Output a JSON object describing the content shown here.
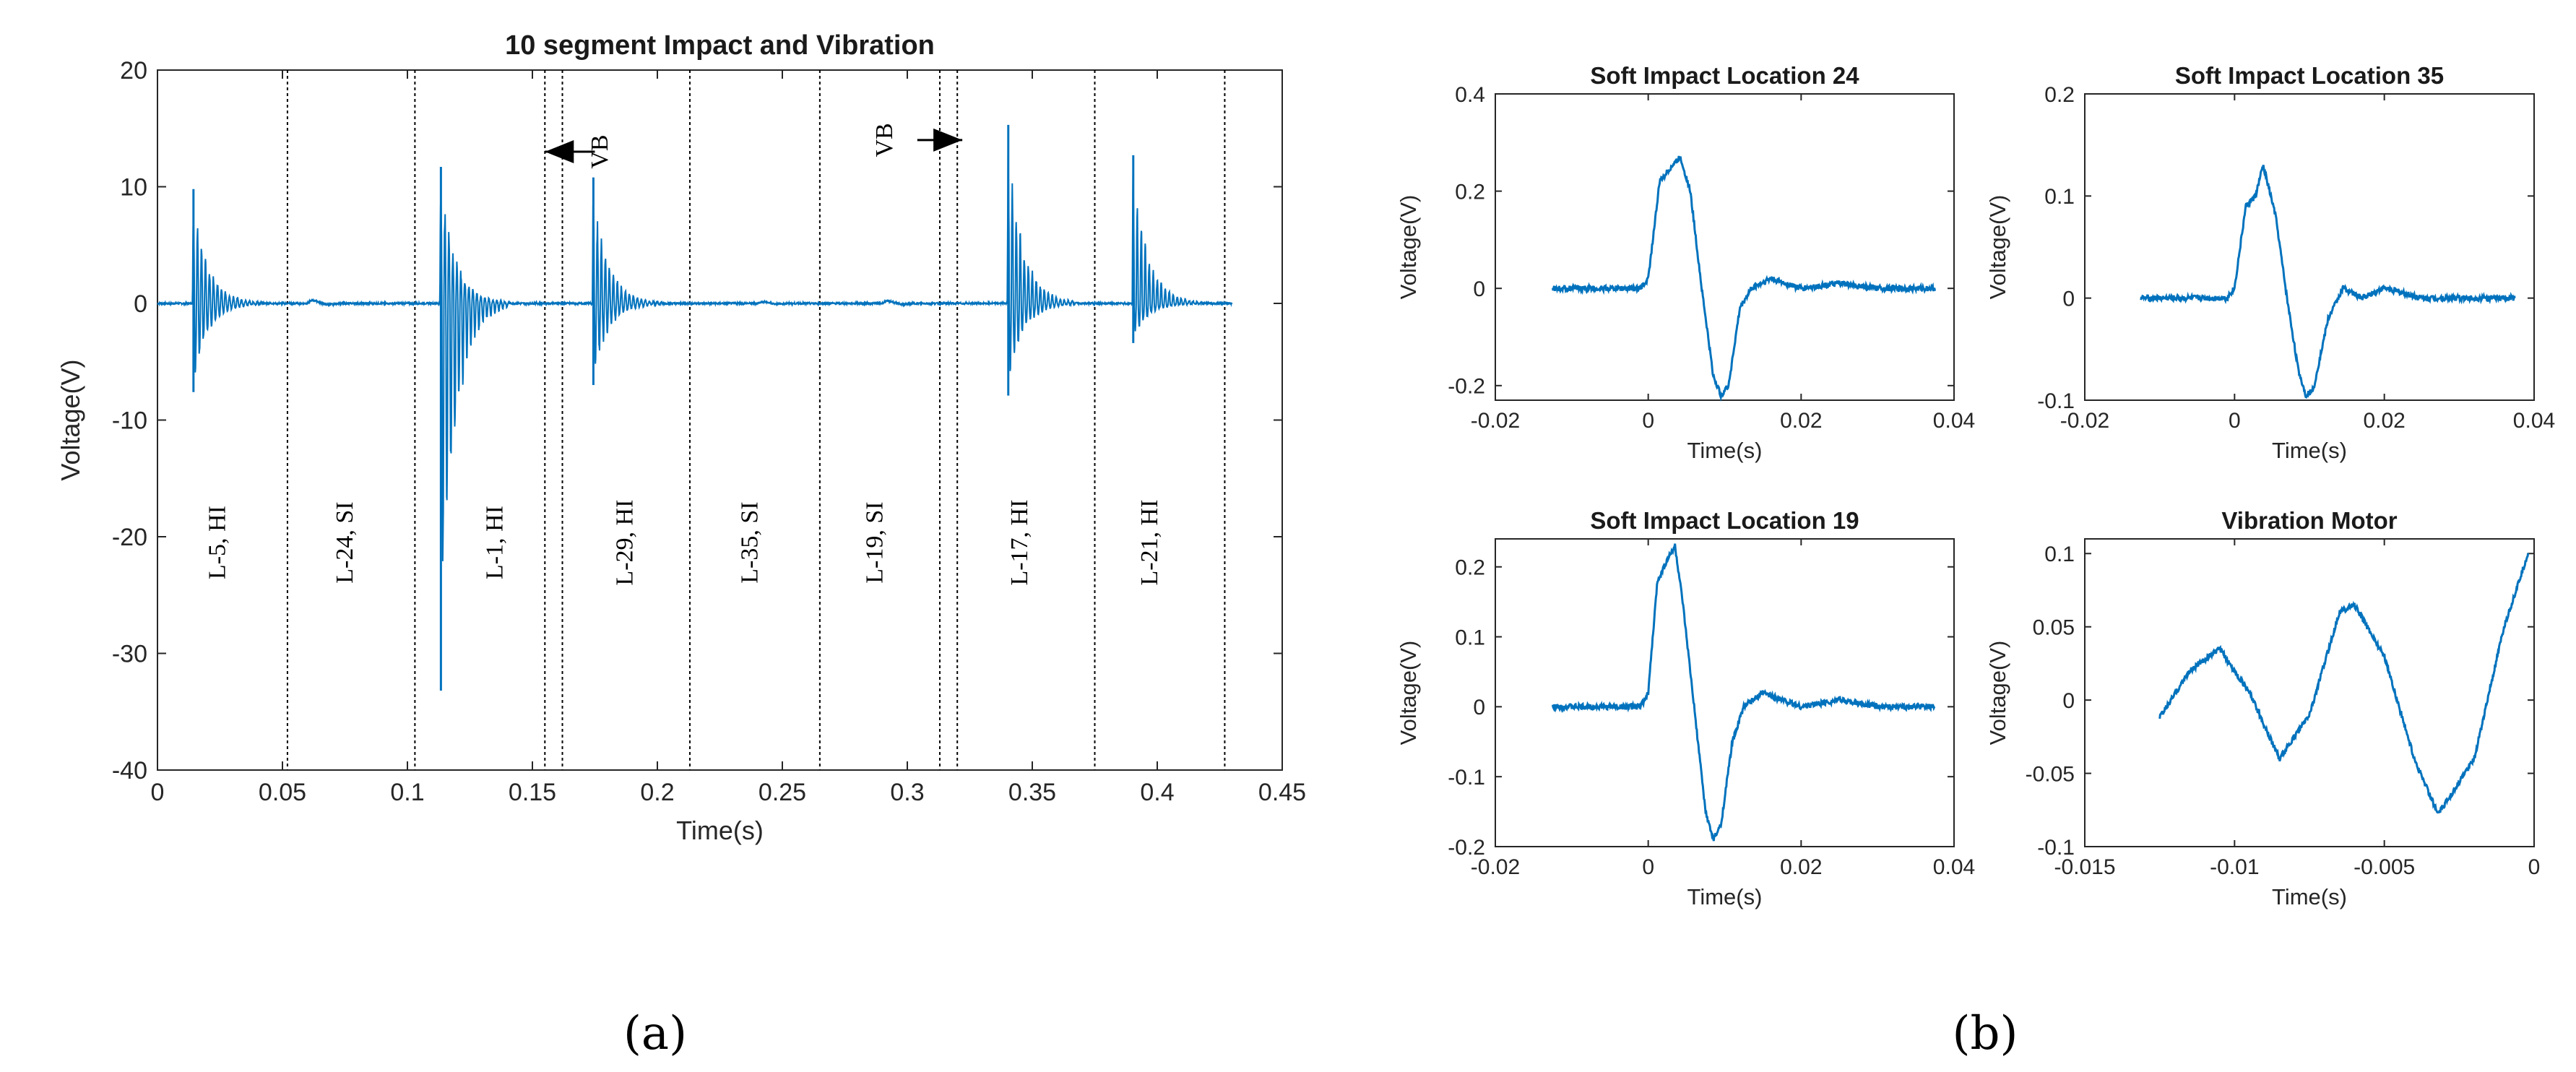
{
  "colors": {
    "series": "#0072BD",
    "axis": "#262626",
    "divider": "#000000",
    "background": "#ffffff"
  },
  "panel_labels": {
    "a": "(a)",
    "b": "(b)"
  },
  "chart_data": [
    {
      "id": "main",
      "type": "line",
      "title": "10 segment Impact and Vibration",
      "xlabel": "Time(s)",
      "ylabel": "Voltage(V)",
      "xlim": [
        0,
        0.45
      ],
      "ylim": [
        -40,
        20
      ],
      "xticks": [
        0,
        0.05,
        0.1,
        0.15,
        0.2,
        0.25,
        0.3,
        0.35,
        0.4,
        0.45
      ],
      "xtick_labels": [
        "0",
        "0.05",
        "0.1",
        "0.15",
        "0.2",
        "0.25",
        "0.3",
        "0.35",
        "0.4",
        "0.45"
      ],
      "yticks": [
        -40,
        -30,
        -20,
        -10,
        0,
        10,
        20
      ],
      "ytick_labels": [
        "-40",
        "-30",
        "-20",
        "-10",
        "0",
        "10",
        "20"
      ],
      "series_start": 0.0,
      "series_end": 0.43,
      "dividers": [
        0.052,
        0.103,
        0.155,
        0.162,
        0.213,
        0.265,
        0.313,
        0.32,
        0.375,
        0.427
      ],
      "segments": [
        {
          "x": 0.027,
          "label": "L-5, HI"
        },
        {
          "x": 0.078,
          "label": "L-24, SI"
        },
        {
          "x": 0.138,
          "label": "L-1, HI"
        },
        {
          "x": 0.19,
          "label": "L-29, HI"
        },
        {
          "x": 0.24,
          "label": "L-35, SI"
        },
        {
          "x": 0.29,
          "label": "L-19, SI"
        },
        {
          "x": 0.348,
          "label": "L-17, HI"
        },
        {
          "x": 0.4,
          "label": "L-21, HI"
        }
      ],
      "impacts": [
        {
          "t": 0.014,
          "peak": 9.8,
          "trough": -7.6,
          "type": "hard"
        },
        {
          "t": 0.06,
          "peak": 0.4,
          "trough": -0.3,
          "type": "soft"
        },
        {
          "t": 0.113,
          "peak": 11.7,
          "trough": -33.2,
          "type": "hard"
        },
        {
          "t": 0.174,
          "peak": 10.8,
          "trough": -7.0,
          "type": "hard"
        },
        {
          "t": 0.24,
          "peak": 0.2,
          "trough": -0.2,
          "type": "soft"
        },
        {
          "t": 0.29,
          "peak": 0.3,
          "trough": -0.2,
          "type": "soft"
        },
        {
          "t": 0.34,
          "peak": 15.3,
          "trough": -7.9,
          "type": "hard"
        },
        {
          "t": 0.39,
          "peak": 12.7,
          "trough": -3.4,
          "type": "hard"
        }
      ],
      "annotations": [
        {
          "text": "VB",
          "x": 0.18,
          "arrow_from": 0.175,
          "arrow_to": 0.155,
          "arrow_y": 13
        },
        {
          "text": "VB",
          "x": 0.294,
          "arrow_from": 0.304,
          "arrow_to": 0.322,
          "arrow_y": 14
        }
      ]
    },
    {
      "id": "b1",
      "type": "line",
      "title": "Soft Impact Location 24",
      "xlabel": "Time(s)",
      "ylabel": "Voltage(V)",
      "xlim": [
        -0.02,
        0.04
      ],
      "ylim": [
        -0.23,
        0.4
      ],
      "xticks": [
        -0.02,
        0,
        0.02,
        0.04
      ],
      "xtick_labels": [
        "-0.02",
        "0",
        "0.02",
        "0.04"
      ],
      "yticks": [
        -0.2,
        0,
        0.2,
        0.4
      ],
      "ytick_labels": [
        "-0.2",
        "0",
        "0.2",
        "0.4"
      ],
      "x": [
        -0.0125,
        -0.001,
        0.0,
        0.0015,
        0.003,
        0.0042,
        0.0055,
        0.007,
        0.0085,
        0.0095,
        0.0105,
        0.012,
        0.0135,
        0.016,
        0.02,
        0.025,
        0.03,
        0.0375
      ],
      "values": [
        0.0,
        0.0,
        0.02,
        0.22,
        0.25,
        0.27,
        0.2,
        0.0,
        -0.18,
        -0.22,
        -0.2,
        -0.04,
        0.0,
        0.02,
        0.0,
        0.01,
        0.0,
        0.0
      ]
    },
    {
      "id": "b2",
      "type": "line",
      "title": "Soft Impact Location 35",
      "xlabel": "Time(s)",
      "ylabel": "Voltage(V)",
      "xlim": [
        -0.02,
        0.04
      ],
      "ylim": [
        -0.1,
        0.2
      ],
      "xticks": [
        -0.02,
        0,
        0.02,
        0.04
      ],
      "xtick_labels": [
        "-0.02",
        "0",
        "0.02",
        "0.04"
      ],
      "yticks": [
        -0.1,
        0,
        0.1,
        0.2
      ],
      "ytick_labels": [
        "-0.1",
        "0",
        "0.1",
        "0.2"
      ],
      "x": [
        -0.0125,
        -0.001,
        0.0,
        0.0015,
        0.0028,
        0.0038,
        0.0045,
        0.0055,
        0.007,
        0.0085,
        0.0095,
        0.0105,
        0.0125,
        0.0145,
        0.017,
        0.02,
        0.025,
        0.03,
        0.0375
      ],
      "values": [
        0.0,
        0.0,
        0.01,
        0.09,
        0.1,
        0.13,
        0.11,
        0.08,
        0.0,
        -0.07,
        -0.095,
        -0.09,
        -0.02,
        0.01,
        0.0,
        0.01,
        0.0,
        0.0,
        0.0
      ]
    },
    {
      "id": "b3",
      "type": "line",
      "title": "Soft Impact Location 19",
      "xlabel": "Time(s)",
      "ylabel": "Voltage(V)",
      "xlim": [
        -0.02,
        0.04
      ],
      "ylim": [
        -0.2,
        0.24
      ],
      "xticks": [
        -0.02,
        0,
        0.02,
        0.04
      ],
      "xtick_labels": [
        "-0.02",
        "0",
        "0.02",
        "0.04"
      ],
      "yticks": [
        -0.2,
        -0.1,
        0,
        0.1,
        0.2
      ],
      "ytick_labels": [
        "-0.2",
        "-0.1",
        "0",
        "0.1",
        "0.2"
      ],
      "x": [
        -0.0125,
        -0.001,
        0.0,
        0.0012,
        0.0025,
        0.0035,
        0.0045,
        0.006,
        0.0075,
        0.0085,
        0.0095,
        0.011,
        0.0125,
        0.015,
        0.02,
        0.025,
        0.03,
        0.0375
      ],
      "values": [
        0.0,
        0.0,
        0.02,
        0.18,
        0.21,
        0.23,
        0.15,
        0.0,
        -0.15,
        -0.19,
        -0.17,
        -0.05,
        0.0,
        0.02,
        0.0,
        0.01,
        0.0,
        0.0
      ]
    },
    {
      "id": "b4",
      "type": "line",
      "title": "Vibration Motor",
      "xlabel": "Time(s)",
      "ylabel": "Voltage(V)",
      "xlim": [
        -0.015,
        0
      ],
      "ylim": [
        -0.1,
        0.11
      ],
      "xticks": [
        -0.015,
        -0.01,
        -0.005,
        0
      ],
      "xtick_labels": [
        "-0.015",
        "-0.01",
        "-0.005",
        "0"
      ],
      "yticks": [
        -0.1,
        -0.05,
        0,
        0.05,
        0.1
      ],
      "ytick_labels": [
        "-0.1",
        "-0.05",
        "0",
        "0.05",
        "0.1"
      ],
      "x": [
        -0.0125,
        -0.0115,
        -0.0105,
        -0.0095,
        -0.0085,
        -0.0075,
        -0.0065,
        -0.006,
        -0.005,
        -0.004,
        -0.0032,
        -0.002,
        -0.001,
        -0.0002
      ],
      "values": [
        -0.012,
        0.02,
        0.035,
        0.005,
        -0.04,
        -0.01,
        0.06,
        0.065,
        0.03,
        -0.04,
        -0.078,
        -0.04,
        0.05,
        0.1
      ]
    }
  ]
}
